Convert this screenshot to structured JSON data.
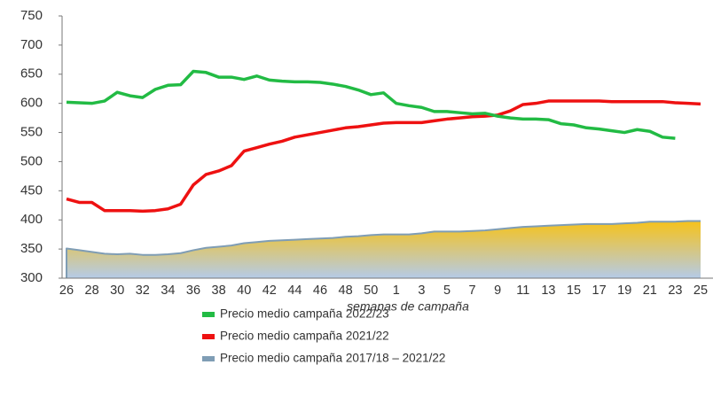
{
  "chart_data": {
    "type": "line",
    "x_label": "semanas de campaña",
    "categories": [
      "26",
      null,
      "28",
      null,
      "30",
      null,
      "32",
      null,
      "34",
      null,
      "36",
      null,
      "38",
      null,
      "40",
      null,
      "42",
      null,
      "44",
      null,
      "46",
      null,
      "48",
      null,
      "50",
      null,
      "1",
      null,
      "3",
      null,
      "5",
      null,
      "7",
      null,
      "9",
      null,
      "11",
      null,
      "13",
      null,
      "15",
      null,
      "17",
      null,
      "19",
      null,
      "21",
      null,
      "23",
      null,
      "25"
    ],
    "series": [
      {
        "name": "Precio medio campaña 2022/23",
        "color": "#22bb44",
        "values": [
          602,
          601,
          600,
          604,
          619,
          613,
          610,
          624,
          631,
          632,
          655,
          653,
          645,
          645,
          641,
          647,
          640,
          638,
          637,
          637,
          636,
          633,
          629,
          623,
          615,
          618,
          600,
          596,
          593,
          586,
          586,
          584,
          582,
          583,
          578,
          575,
          573,
          573,
          572,
          565,
          563,
          558,
          556,
          553,
          550,
          555,
          552,
          542,
          540,
          null,
          null
        ]
      },
      {
        "name": "Precio medio campaña 2021/22",
        "color": "#ee1111",
        "values": [
          436,
          430,
          430,
          416,
          416,
          416,
          415,
          416,
          419,
          427,
          460,
          478,
          484,
          493,
          518,
          524,
          530,
          535,
          542,
          546,
          550,
          554,
          558,
          560,
          563,
          566,
          567,
          567,
          567,
          570,
          573,
          575,
          577,
          578,
          580,
          587,
          598,
          600,
          604,
          604,
          604,
          604,
          604,
          603,
          603,
          603,
          603,
          603,
          601,
          600,
          599
        ]
      },
      {
        "name": "Precio medio campaña 2017/18 – 2021/22",
        "color": "#7f9db5",
        "area": true,
        "values": [
          351,
          348,
          345,
          342,
          341,
          342,
          340,
          340,
          341,
          343,
          348,
          352,
          354,
          356,
          360,
          362,
          364,
          365,
          366,
          367,
          368,
          369,
          371,
          372,
          374,
          375,
          375,
          375,
          377,
          380,
          380,
          380,
          381,
          382,
          384,
          386,
          388,
          389,
          390,
          391,
          392,
          393,
          393,
          393,
          394,
          395,
          397,
          397,
          397,
          398,
          398
        ]
      }
    ],
    "ylim": [
      300,
      750
    ],
    "yticks": [
      300,
      350,
      400,
      450,
      500,
      550,
      600,
      650,
      700,
      750
    ],
    "grid": false
  }
}
